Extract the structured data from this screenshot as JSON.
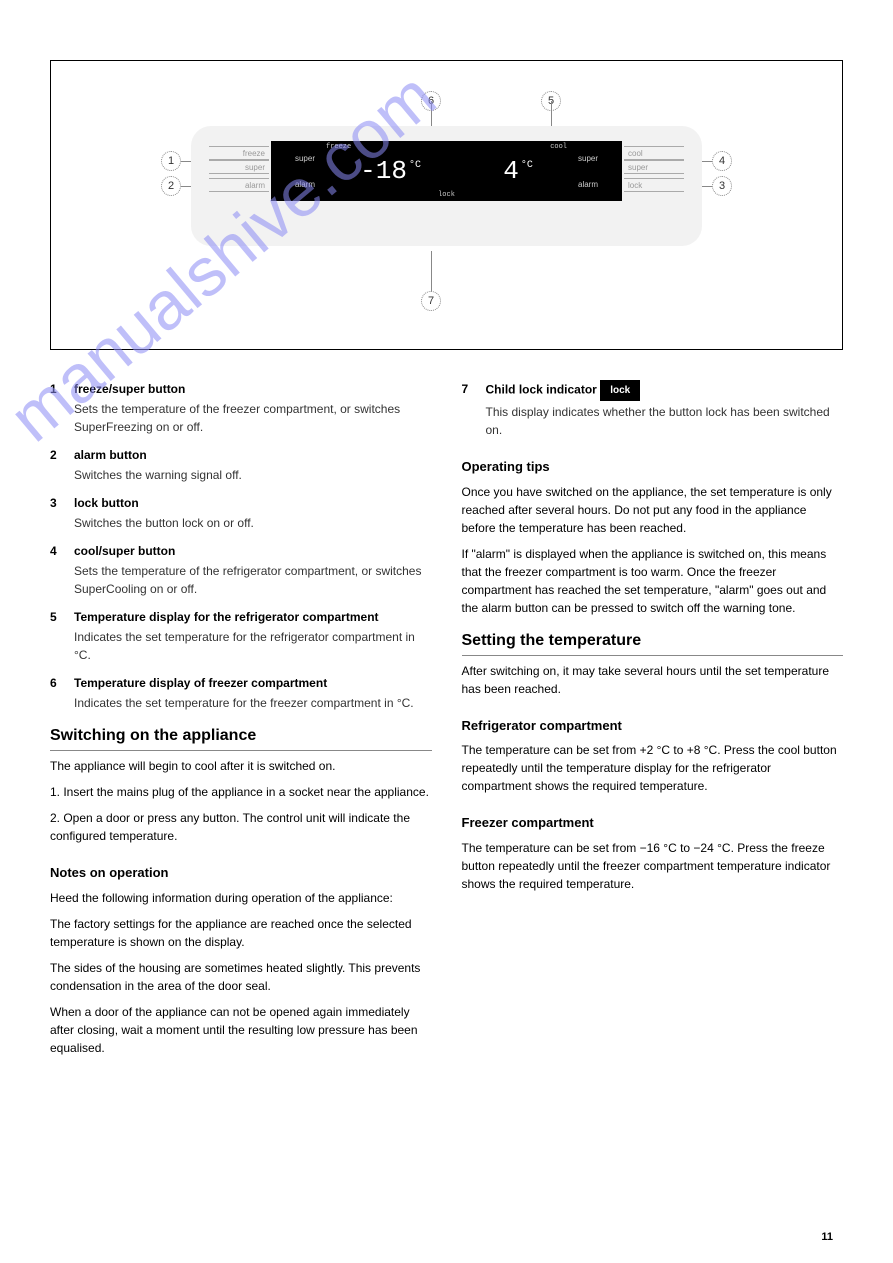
{
  "watermark": "manualshive.com",
  "diagram": {
    "callouts": [
      "1",
      "2",
      "3",
      "4",
      "5",
      "6",
      "7"
    ],
    "lcd": {
      "freezer_temp": "-18",
      "fridge_temp": "4",
      "unit": "°C",
      "labels": {
        "super": "super",
        "alarm": "alarm",
        "freeze": "freeze",
        "cool": "cool",
        "lock": "lock"
      }
    },
    "buttons": {
      "left_top": "freeze",
      "left_mid": "super",
      "left_bot": "alarm",
      "right_top": "cool",
      "right_mid": "super",
      "right_bot": "lock"
    }
  },
  "left_items": [
    {
      "n": "1",
      "title": "freeze/super button",
      "desc": "Sets the temperature of the freezer compartment, or switches SuperFreezing on or off."
    },
    {
      "n": "2",
      "title": "alarm button",
      "desc": "Switches the warning signal off."
    },
    {
      "n": "3",
      "title": "lock button",
      "desc": "Switches the button lock on or off."
    },
    {
      "n": "4",
      "title": "cool/super button",
      "desc": "Sets the temperature of the refrigerator compartment, or switches SuperCooling on or off."
    },
    {
      "n": "5",
      "title": "Temperature display for the refrigerator compartment",
      "desc": "Indicates the set temperature for the refrigerator compartment in °C."
    },
    {
      "n": "6",
      "title": "Temperature display of freezer compartment",
      "desc": "Indicates the set temperature for the freezer compartment in °C."
    }
  ],
  "item7": {
    "n": "7",
    "title": "Child lock indicator",
    "desc": "This display indicates whether the button lock has been switched on."
  },
  "lock_label": "lock",
  "switching_heading": "Switching on the appliance",
  "switching_steps": [
    "The appliance will begin to cool after it is switched on.",
    "1. Insert the mains plug of the appliance in a socket near the appliance.",
    "2. Open a door or press any button. The control unit will indicate the configured temperature."
  ],
  "notes_title": "Notes on operation",
  "notes_body": "Heed the following information during operation of the appliance:",
  "notes_list": [
    "The factory settings for the appliance are reached once the selected temperature is shown on the display.",
    "The sides of the housing are sometimes heated slightly. This prevents condensation in the area of the door seal.",
    "When a door of the appliance can not be opened again immediately after closing, wait a moment until the resulting low pressure has been equalised."
  ],
  "tips_heading": "Operating tips",
  "tips_body": [
    "Once you have switched on the appliance, the set temperature is only reached after several hours. Do not put any food in the appliance before the temperature has been reached.",
    "If \"alarm\" is displayed when the appliance is switched on, this means that the freezer compartment is too warm. Once the freezer compartment has reached the set temperature, \"alarm\" goes out and the alarm button can be pressed to switch off the warning tone."
  ],
  "temp_heading": "Setting the temperature",
  "temp_body": "After switching on, it may take several hours until the set temperature has been reached.",
  "fridge_sub": "Refrigerator compartment",
  "fridge_body": "The temperature can be set from +2 °C to +8 °C. Press the cool button repeatedly until the temperature display for the refrigerator compartment shows the required temperature.",
  "freeze_sub": "Freezer compartment",
  "freeze_body": "The temperature can be set from −16 °C to −24 °C. Press the freeze button repeatedly until the freezer compartment temperature indicator shows the required temperature.",
  "page_number": "11"
}
